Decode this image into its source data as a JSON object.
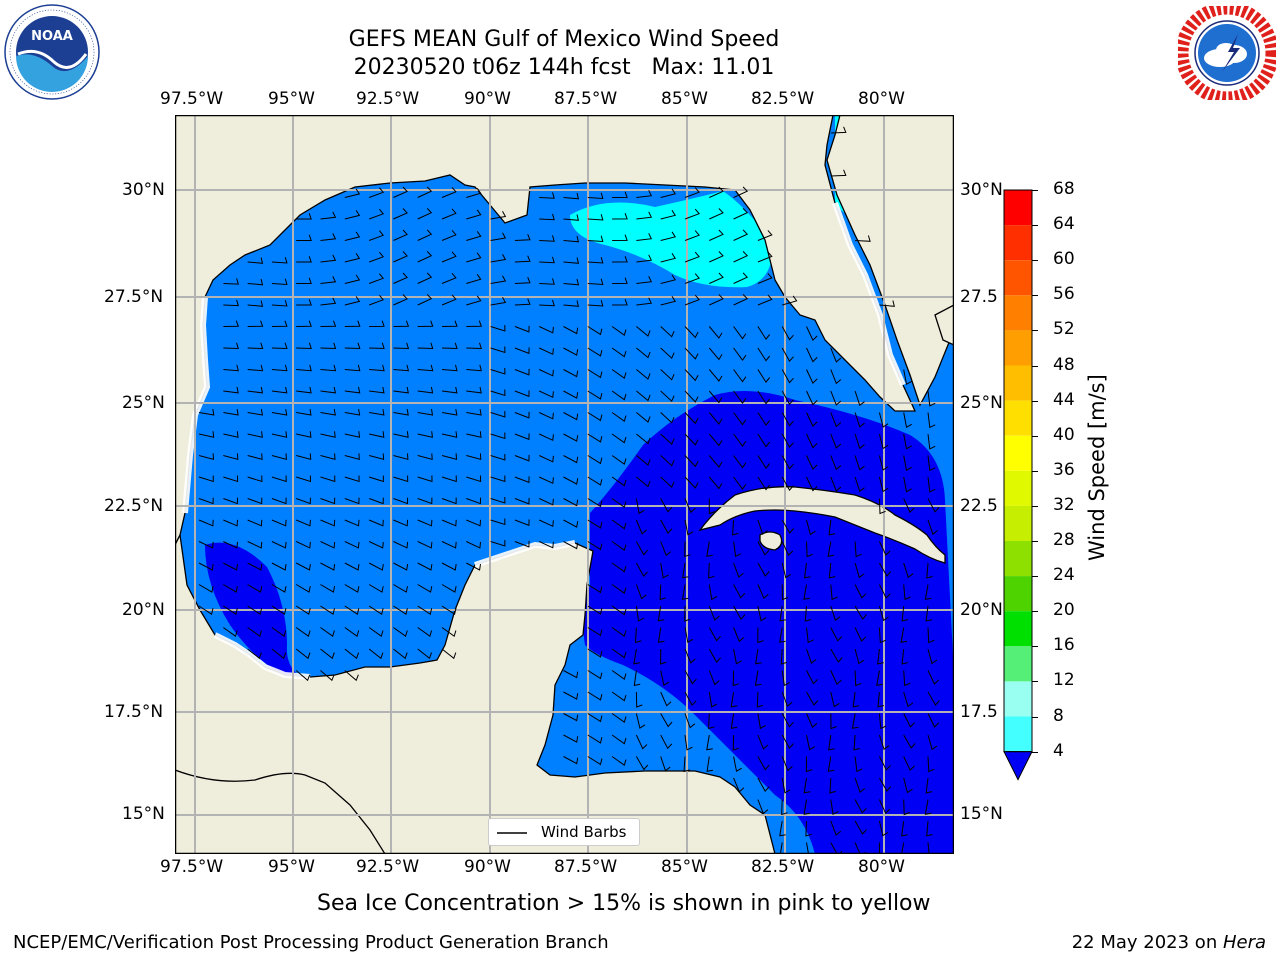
{
  "title_line1": "GEFS MEAN Gulf of Mexico Wind Speed",
  "title_line2": "20230520 t06z 144h fcst   Max: 11.01",
  "lon_ticks": [
    "97.5°W",
    "95°W",
    "92.5°W",
    "90°W",
    "87.5°W",
    "85°W",
    "82.5°W",
    "80°W"
  ],
  "lat_ticks_left": [
    "30°N",
    "27.5°N",
    "25°N",
    "22.5°N",
    "20°N",
    "17.5°N",
    "15°N"
  ],
  "lat_ticks_right": [
    "30°N",
    "27.5",
    "25°N",
    "22.5",
    "20°N",
    "17.5",
    "15°N"
  ],
  "legend_label": "Wind Barbs",
  "colorbar": {
    "label": "Wind Speed [m/s]",
    "ticks": [
      "68",
      "64",
      "60",
      "56",
      "52",
      "48",
      "44",
      "40",
      "36",
      "32",
      "28",
      "24",
      "20",
      "16",
      "12",
      "8",
      "4"
    ],
    "colors": [
      "#ff0000",
      "#ff2f00",
      "#ff5500",
      "#ff7f00",
      "#ff9e00",
      "#ffbf00",
      "#ffdf00",
      "#ffff00",
      "#e0f800",
      "#c6ee00",
      "#8ee000",
      "#4ed300",
      "#00e000",
      "#55ee77",
      "#99fff0",
      "#44ffff",
      "#00f4ff",
      "#0080ff"
    ],
    "under_color": "#0000f5"
  },
  "note": "Sea Ice Concentration > 15% is shown in pink to yellow",
  "footer_left": "NCEP/EMC/Verification Post Processing Product Generation Branch",
  "footer_right_prefix": "22 May 2023 on ",
  "footer_right_machine": "Hera",
  "logos": {
    "noaa": {
      "center_text": "NOAA",
      "ring_text": "NATIONAL OCEANIC AND ATMOSPHERIC ADMINISTRATION · U.S. DEPARTMENT OF COMMERCE"
    },
    "nws": {
      "ring_text": "NATIONAL WEATHER SERVICE"
    }
  },
  "map": {
    "land_color": "#efeddb",
    "ocean_colors": {
      "4-8": "#0080ff",
      "8-12": "#00ffff",
      "under4": "#0000f5"
    }
  }
}
